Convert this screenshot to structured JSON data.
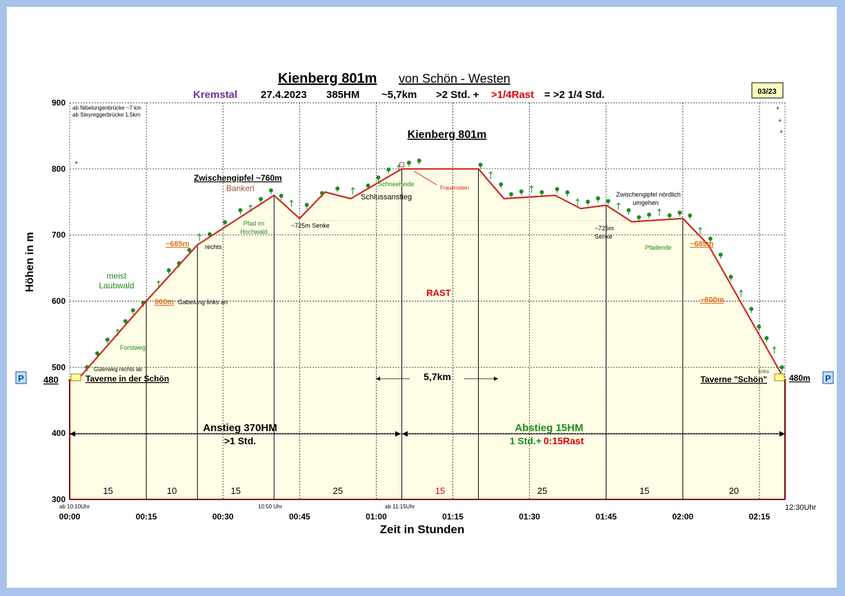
{
  "chart_data": {
    "type": "area",
    "title": "Kienberg 801m",
    "title_suffix": "von Schön - Westen",
    "subtitle": {
      "region": "Kremstal",
      "date": "27.4.2023",
      "hm": "385HM",
      "km": "~5,7km",
      "dur_pre": ">2 Std. +",
      "dur_rast": ">1/4Rast",
      "dur_post": "= >2 1/4 Std."
    },
    "badge": "03/23",
    "xlabel": "Zeit in Stunden",
    "ylabel": "Höhen in m",
    "ylim": [
      300,
      900
    ],
    "xlim": [
      0,
      140
    ],
    "y_ticks": [
      "300",
      "400",
      "500",
      "600",
      "700",
      "800",
      "900"
    ],
    "x_ticks": [
      "00:00",
      "00:15",
      "00:30",
      "00:45",
      "01:00",
      "01:15",
      "01:30",
      "01:45",
      "02:00",
      "02:15"
    ],
    "grid": true,
    "series": [
      {
        "x": [
          0,
          2,
          15,
          25,
          40,
          45,
          50,
          55,
          65,
          70,
          75,
          80,
          85,
          95,
          100,
          105,
          110,
          120,
          125,
          140
        ],
        "y": [
          480,
          485,
          600,
          685,
          760,
          725,
          765,
          755,
          800,
          800,
          800,
          800,
          755,
          760,
          740,
          745,
          720,
          725,
          685,
          480
        ]
      }
    ],
    "segments": [
      {
        "x": 7.5,
        "label": "15"
      },
      {
        "x": 20,
        "label": "10"
      },
      {
        "x": 32.5,
        "label": "15"
      },
      {
        "x": 52.5,
        "label": "25"
      },
      {
        "x": 72.5,
        "label": "15"
      },
      {
        "x": 92.5,
        "label": "25"
      },
      {
        "x": 112.5,
        "label": "15"
      },
      {
        "x": 130,
        "label": "20"
      }
    ],
    "annotations": {
      "bruecke1": "ab Nibelungenbrücke ~7 km",
      "bruecke2": "ab Steyreggerbrücke 1,5km",
      "summit": "Kienberg 801m",
      "zwischengipfel": "Zwischengipfel ~760m",
      "bankerl": "Bankerl",
      "schneeheide": "Schneeheide",
      "frauenstein": "Frauenstein",
      "schlussanstieg": "Schlussanstieg",
      "zg_nord1": "Zwischengipfel nördlich",
      "zg_nord2": "umgehen",
      "senke_left": "~725m Senke",
      "senke_right1": "~725m",
      "senke_right2": "Senke",
      "pfad1": "Pfad im",
      "pfad2": "Hochwald",
      "rechts": "rechts",
      "h685_left": "~685m",
      "h685_right": "~685m",
      "h600_left": "600m",
      "gabelung": "Gabelung links an",
      "h600_right": "~600m",
      "laubwald1": "meist",
      "laubwald2": "Laubwald",
      "forstweg": "Forstweg",
      "gueterweg": "Güterweg rechts  ab",
      "taverne_left": "Taverne  in der Schön",
      "taverne_right": "Taverne \"Schön\"",
      "pfadende": "Pfadende",
      "links": "links",
      "rast": "RAST",
      "dist": "5,7km",
      "start_alt": "480",
      "end_alt": "480m",
      "parking": "P",
      "anstieg1": "Anstieg 370HM",
      "anstieg2": ">1 Std.",
      "abstieg1": "Abstieg 15HM",
      "abstieg2_a": "1 Std.+",
      "abstieg2_b": "0:15Rast",
      "t_start": "ab 10:10Uhr",
      "t_1050": "10:50 Uhr",
      "t_1115": "ab 11:15Uhr",
      "t_end": "12:30Uhr"
    },
    "colors": {
      "route": "#e02020",
      "fill": "#fffde6",
      "subtitle_region": "#7030a0",
      "rast": "#e00000",
      "green": "#1e8c1e",
      "orange": "#e07020",
      "brown": "#a0522d",
      "axis": "#800000"
    }
  }
}
